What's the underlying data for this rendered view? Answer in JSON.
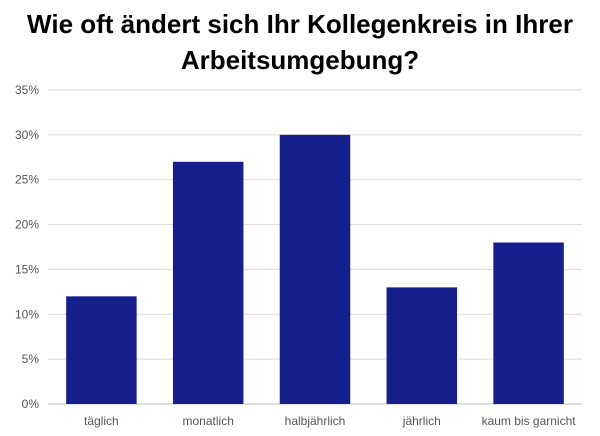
{
  "title_lines": [
    "Wie oft ändert sich Ihr Kollegenkreis in Ihrer",
    "Arbeitsumgebung?"
  ],
  "colors": {
    "bar": "#161f8c",
    "grid": "#d9d9d9",
    "axis": "#bfbfbf"
  },
  "chart_data": {
    "type": "bar",
    "title": "Wie oft ändert sich Ihr Kollegenkreis in Ihrer Arbeitsumgebung?",
    "categories": [
      "täglich",
      "monatlich",
      "halbjährlich",
      "jährlich",
      "kaum bis garnicht"
    ],
    "values": [
      12,
      27,
      30,
      13,
      18
    ],
    "ylim": [
      0,
      35
    ],
    "yticks": [
      "0%",
      "5%",
      "10%",
      "15%",
      "20%",
      "25%",
      "30%",
      "35%"
    ],
    "ytick_values": [
      0,
      5,
      10,
      15,
      20,
      25,
      30,
      35
    ],
    "grid": true,
    "legend": "none"
  }
}
